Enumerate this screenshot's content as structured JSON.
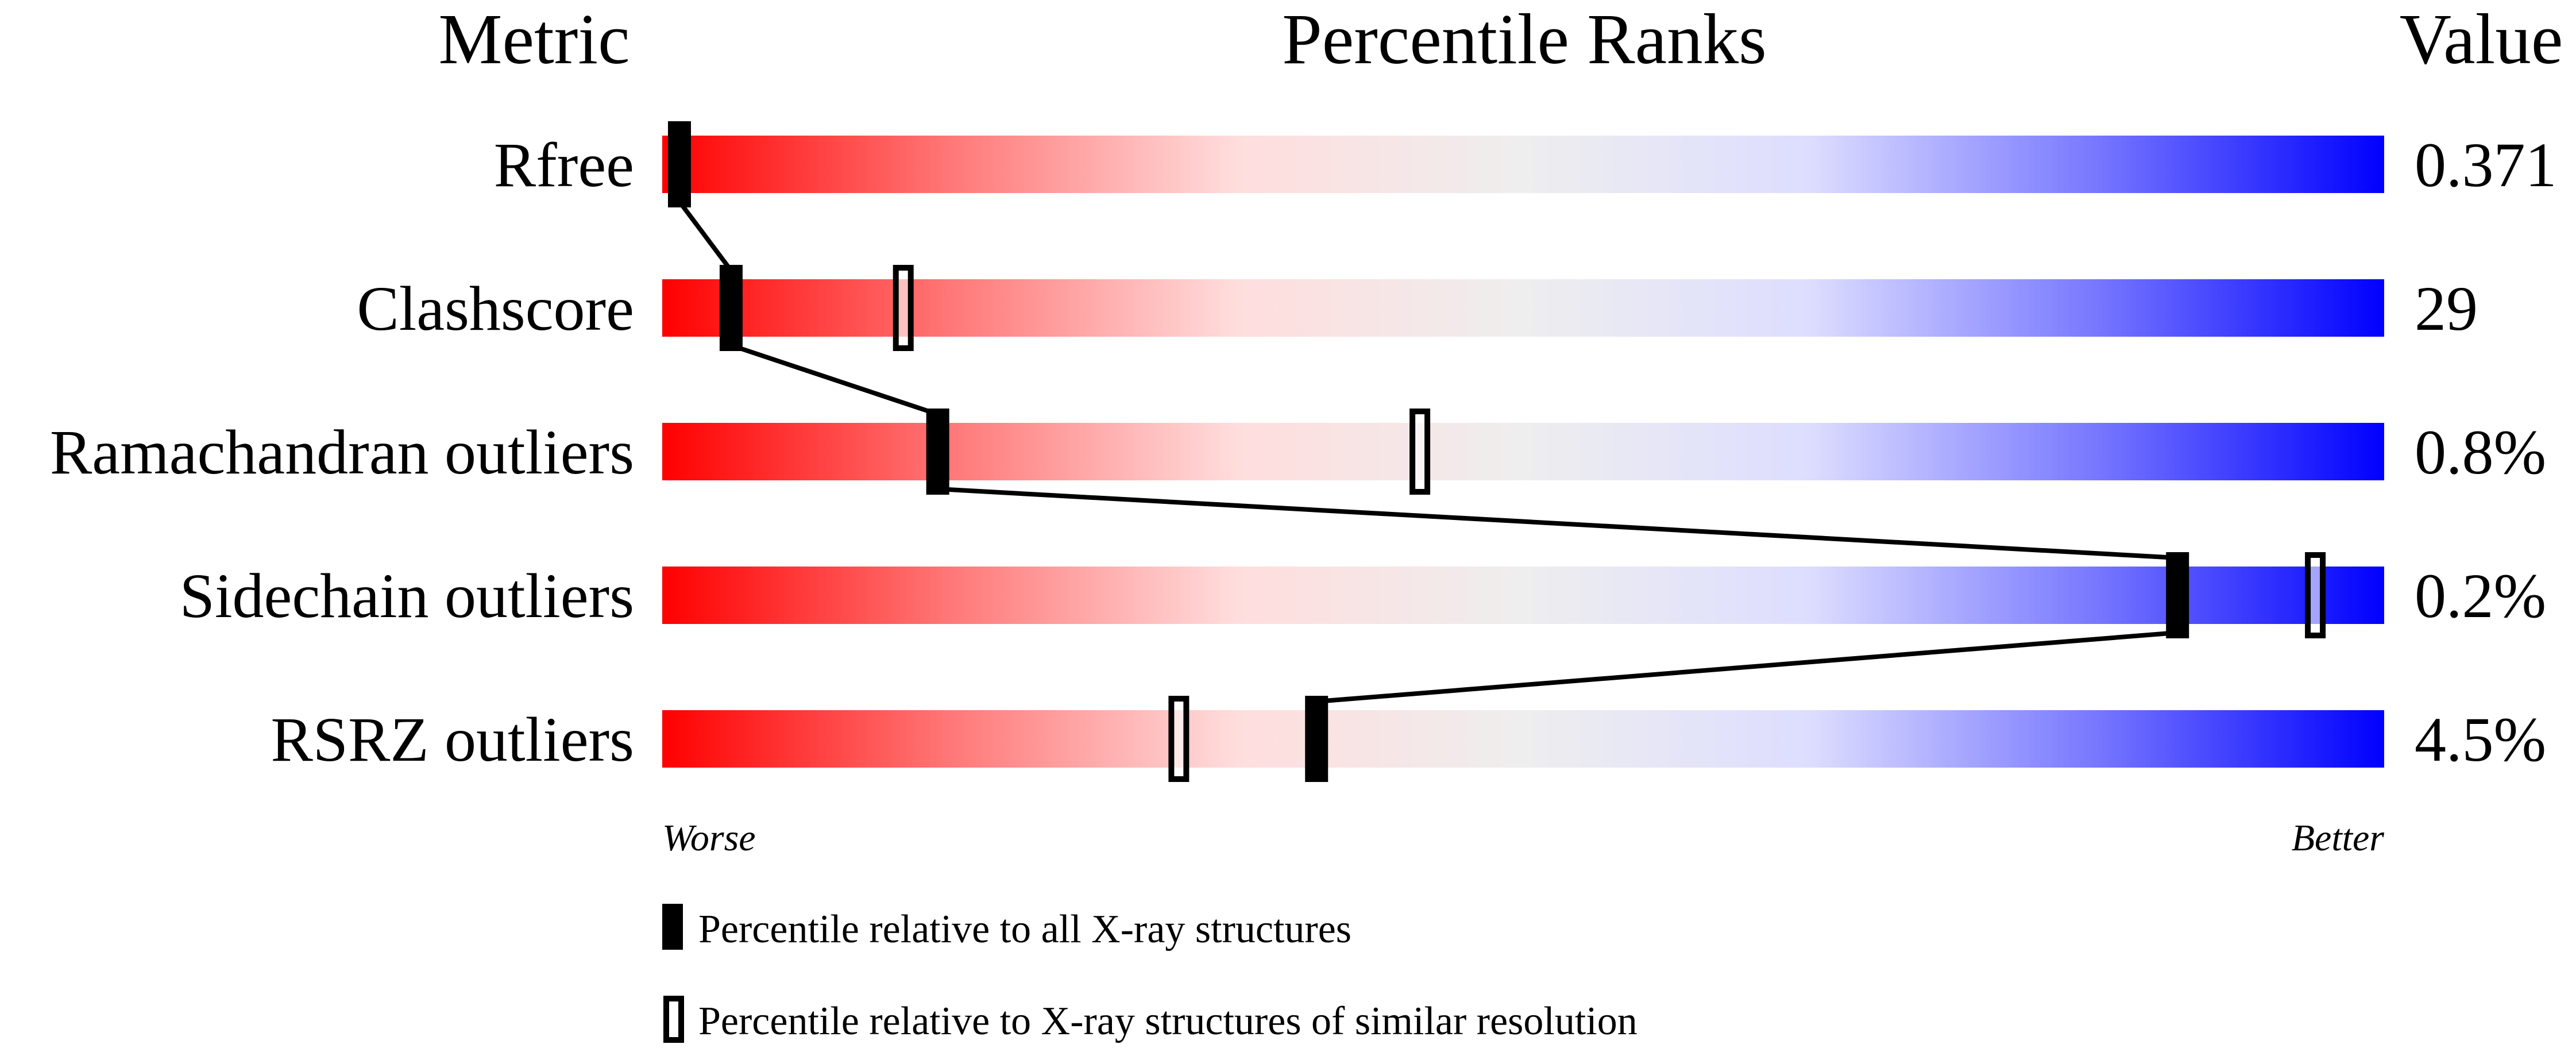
{
  "chart_data": {
    "type": "bar",
    "title": "",
    "headers": {
      "metric": "Metric",
      "percentile": "Percentile Ranks",
      "value": "Value"
    },
    "xlim": [
      0,
      100
    ],
    "scale_labels": {
      "left": "Worse",
      "right": "Better"
    },
    "gradient_colors": [
      "#ff0000",
      "#ff7777",
      "#ffdddd",
      "#eeeeee",
      "#ddddff",
      "#7777ff",
      "#0000ff"
    ],
    "metrics": [
      {
        "name": "Rfree",
        "value": "0.371",
        "percentile_all": 1,
        "percentile_similar": null
      },
      {
        "name": "Clashscore",
        "value": "29",
        "percentile_all": 4,
        "percentile_similar": 14
      },
      {
        "name": "Ramachandran outliers",
        "value": "0.8%",
        "percentile_all": 16,
        "percentile_similar": 44
      },
      {
        "name": "Sidechain outliers",
        "value": "0.2%",
        "percentile_all": 88,
        "percentile_similar": 96
      },
      {
        "name": "RSRZ outliers",
        "value": "4.5%",
        "percentile_all": 38,
        "percentile_similar": 30
      }
    ],
    "legend": [
      {
        "marker": "filled",
        "label": "Percentile relative to all X-ray structures"
      },
      {
        "marker": "open",
        "label": "Percentile relative to X-ray structures of similar resolution"
      }
    ]
  }
}
